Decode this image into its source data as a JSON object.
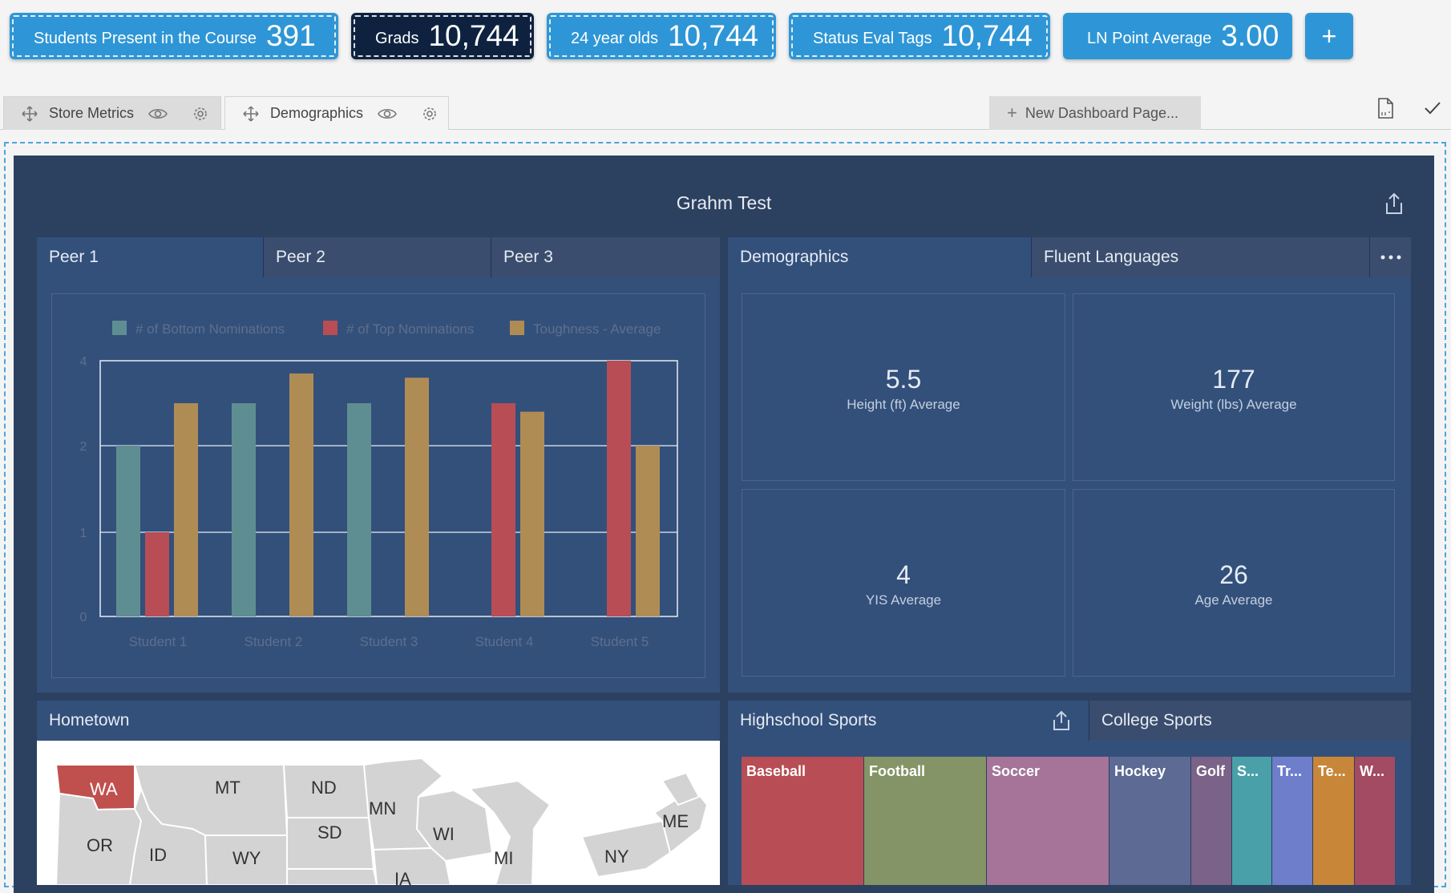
{
  "kpis": [
    {
      "label": "Students Present in the Course",
      "value": "391"
    },
    {
      "label": "Grads",
      "value": "10,744"
    },
    {
      "label": "24 year olds",
      "value": "10,744"
    },
    {
      "label": "Status Eval Tags",
      "value": "10,744"
    },
    {
      "label": "LN Point Average",
      "value": "3.00"
    }
  ],
  "kpi_add_label": "+",
  "page_tabs": [
    {
      "label": "Store Metrics"
    },
    {
      "label": "Demographics"
    }
  ],
  "new_page_label": "New Dashboard Page...",
  "dashboard_title": "Grahm Test",
  "peer_tabs": [
    "Peer 1",
    "Peer 2",
    "Peer 3"
  ],
  "demo_tabs": [
    "Demographics",
    "Fluent Languages"
  ],
  "tiles": [
    {
      "value": "5.5",
      "label": "Height (ft) Average"
    },
    {
      "value": "177",
      "label": "Weight (lbs) Average"
    },
    {
      "value": "4",
      "label": "YIS Average"
    },
    {
      "value": "26",
      "label": "Age Average"
    }
  ],
  "hometown": {
    "title": "Hometown",
    "states": [
      "WA",
      "MT",
      "ND",
      "MN",
      "OR",
      "ID",
      "WY",
      "SD",
      "WI",
      "MI",
      "ME",
      "NY",
      "IA"
    ]
  },
  "sports_tabs": [
    "Highschool Sports",
    "College Sports"
  ],
  "treemap": [
    {
      "label": "Baseball",
      "color": "#b84d55"
    },
    {
      "label": "Football",
      "color": "#849466"
    },
    {
      "label": "Soccer",
      "color": "#a57498"
    },
    {
      "label": "Hockey",
      "color": "#5c6a94"
    },
    {
      "label": "Golf",
      "color": "#7a6288"
    },
    {
      "label": "S...",
      "color": "#49a0a8"
    },
    {
      "label": "Tr...",
      "color": "#6e7ecb"
    },
    {
      "label": "Te...",
      "color": "#c88638"
    },
    {
      "label": "W...",
      "color": "#a24b62"
    }
  ],
  "chart_data": {
    "type": "bar",
    "categories": [
      "Student 1",
      "Student 2",
      "Student 3",
      "Student 4",
      "Student 5"
    ],
    "series": [
      {
        "name": "# of Bottom Nominations",
        "color": "#5e8e92",
        "values": [
          2,
          3,
          3,
          null,
          null
        ]
      },
      {
        "name": "# of Top Nominations",
        "color": "#b84d55",
        "values": [
          1,
          null,
          null,
          3,
          4
        ]
      },
      {
        "name": "Toughness - Average",
        "color": "#b08c55",
        "values": [
          3,
          3.7,
          3.6,
          2.8,
          2
        ]
      }
    ],
    "y_ticks": [
      "0",
      "1",
      "2",
      "4"
    ],
    "legend": "top",
    "ylim": [
      0,
      4
    ]
  }
}
